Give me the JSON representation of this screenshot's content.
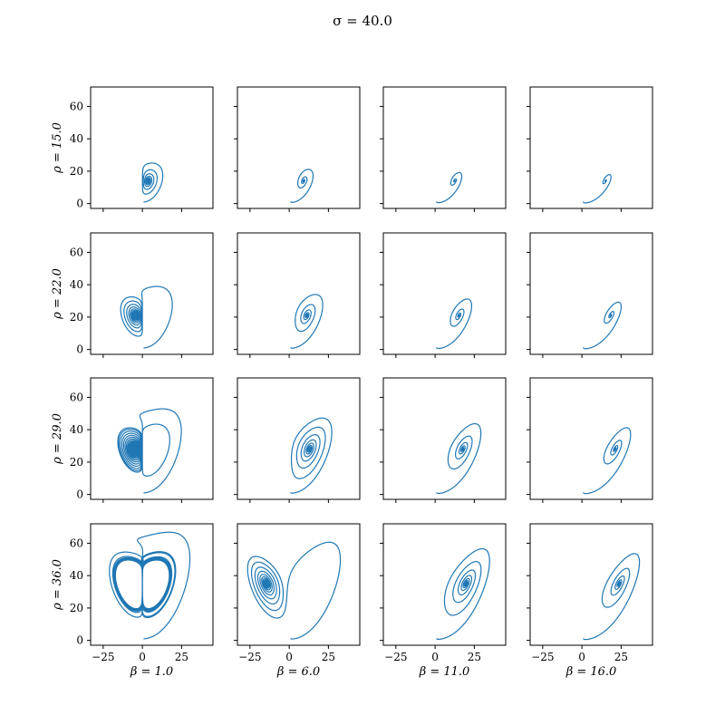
{
  "chart_data": {
    "type": "line",
    "suptitle": "σ = 40.0",
    "grid": false,
    "color": "#1f77b4",
    "xlim": [
      -33,
      45
    ],
    "ylim": [
      -3,
      72
    ],
    "xticks": [
      -25,
      0,
      25
    ],
    "yticks": [
      0,
      20,
      40,
      60
    ],
    "rows": [
      {
        "label": "ρ = 15.0",
        "rho": 15
      },
      {
        "label": "ρ = 22.0",
        "rho": 22
      },
      {
        "label": "ρ = 29.0",
        "rho": 29
      },
      {
        "label": "ρ = 36.0",
        "rho": 36
      }
    ],
    "cols": [
      {
        "label": "β = 1.0",
        "beta": 1
      },
      {
        "label": "β = 6.0",
        "beta": 6
      },
      {
        "label": "β = 11.0",
        "beta": 11
      },
      {
        "label": "β = 16.0",
        "beta": 16
      }
    ],
    "series_description": "Lorenz trajectories projected on (x, z) for each (ρ, β) with σ = 40",
    "sigma": 40,
    "initial_state": [
      1,
      1,
      1
    ]
  }
}
